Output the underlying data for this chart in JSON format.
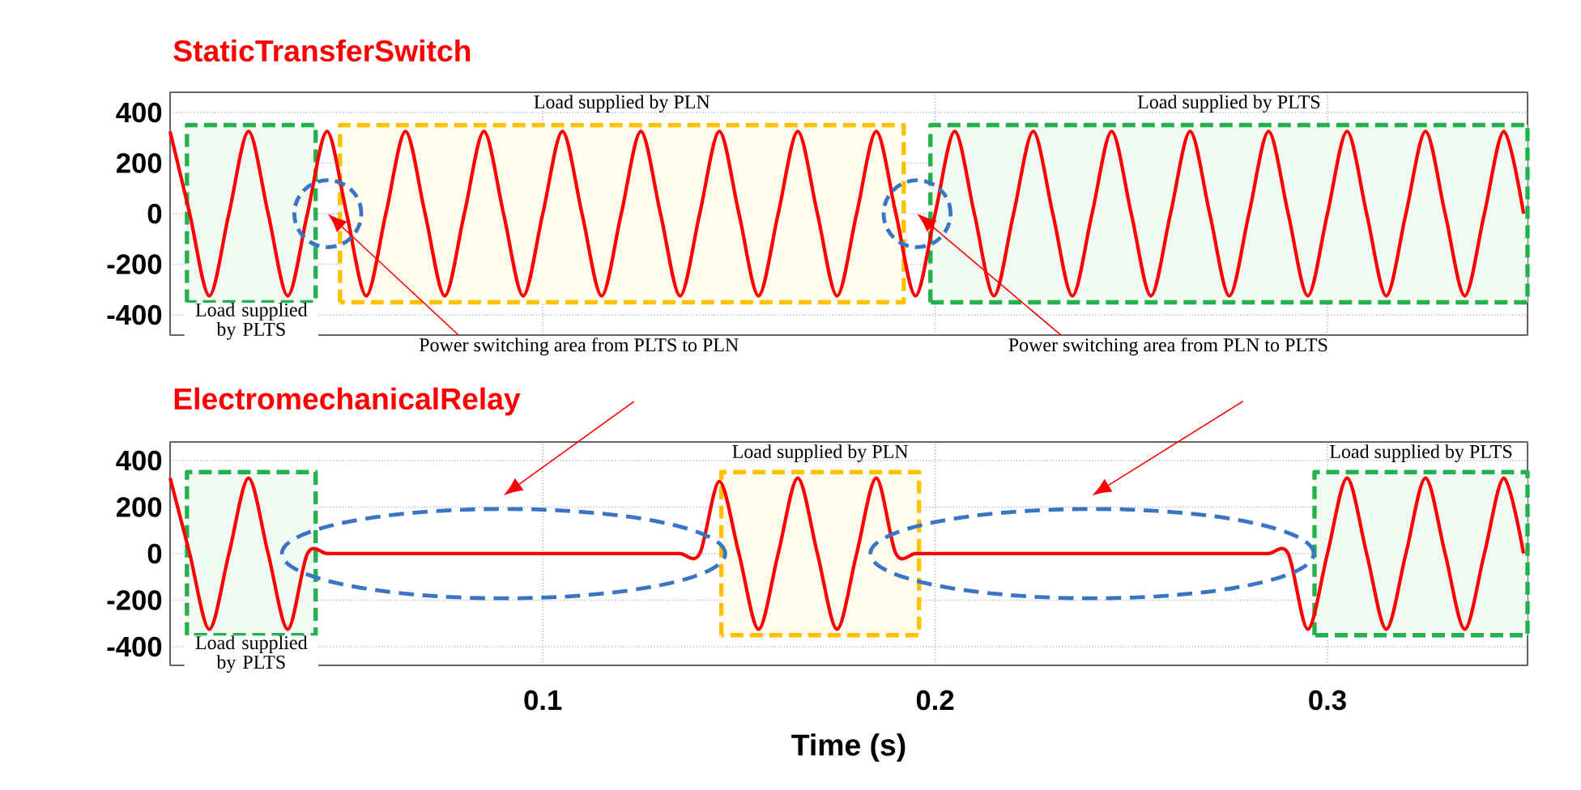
{
  "chart_data": [
    {
      "type": "line",
      "title": "StaticTransferSwitch",
      "x": [
        0.005,
        0.01,
        0.015,
        0.02,
        0.025,
        0.03,
        0.035,
        0.04,
        0.045,
        0.05,
        0.055,
        0.06,
        0.065,
        0.07,
        0.075,
        0.08,
        0.085,
        0.09,
        0.095,
        0.1,
        0.105,
        0.11,
        0.115,
        0.12,
        0.125,
        0.13,
        0.135,
        0.14,
        0.145,
        0.15,
        0.155,
        0.16,
        0.165,
        0.17,
        0.175,
        0.18,
        0.185,
        0.19,
        0.195,
        0.2,
        0.205,
        0.21,
        0.215,
        0.22,
        0.225,
        0.23,
        0.235,
        0.24,
        0.245,
        0.25,
        0.255,
        0.26,
        0.265,
        0.27,
        0.275,
        0.28,
        0.285,
        0.29,
        0.295,
        0.3,
        0.305,
        0.31,
        0.315,
        0.32,
        0.325,
        0.33,
        0.335,
        0.34,
        0.345,
        0.35
      ],
      "series": [
        {
          "color": "#ff0000",
          "values": [
            325,
            0,
            -325,
            0,
            325,
            0,
            -325,
            0,
            325,
            0,
            -325,
            0,
            325,
            0,
            -325,
            0,
            325,
            0,
            -325,
            0,
            325,
            0,
            -325,
            0,
            325,
            0,
            -325,
            0,
            325,
            0,
            -325,
            0,
            325,
            0,
            -325,
            0,
            325,
            0,
            -325,
            0,
            325,
            0,
            -325,
            0,
            325,
            0,
            -325,
            0,
            325,
            0,
            -325,
            0,
            325,
            0,
            -325,
            0,
            325,
            0,
            -325,
            0,
            325,
            0,
            -325,
            0,
            325,
            0,
            -325,
            0,
            325,
            0
          ]
        }
      ],
      "xlim": [
        0.005,
        0.351
      ],
      "ylim": [
        -480,
        480
      ],
      "xticks": [
        0.1,
        0.2,
        0.3
      ],
      "yticks": [
        -400,
        -200,
        0,
        200,
        400
      ],
      "grid": true,
      "tick_labels": "y",
      "bands": [
        {
          "axis": "x",
          "from": 0.0093,
          "to": 0.0421,
          "label": "Load supplied by PLTS",
          "color": "#22b14c"
        },
        {
          "axis": "x",
          "from": 0.0483,
          "to": 0.192,
          "label": "Load supplied by PLN",
          "color": "#ffc000"
        },
        {
          "axis": "x",
          "from": 0.1988,
          "to": 0.351,
          "label": "Load supplied by PLTS",
          "color": "#22b14c"
        }
      ],
      "annotations": [
        "Power switching area from PLTS to PLN",
        "Power switching area from PLN to PLTS"
      ]
    },
    {
      "type": "line",
      "title": "ElectromechanicalRelay",
      "xlabel": "Time (s)",
      "x": [
        0.005,
        0.01,
        0.015,
        0.02,
        0.025,
        0.03,
        0.035,
        0.04,
        0.045,
        0.05,
        0.055,
        0.06,
        0.065,
        0.07,
        0.075,
        0.08,
        0.085,
        0.09,
        0.095,
        0.1,
        0.105,
        0.11,
        0.115,
        0.12,
        0.125,
        0.13,
        0.135,
        0.14,
        0.145,
        0.15,
        0.155,
        0.16,
        0.165,
        0.17,
        0.175,
        0.18,
        0.185,
        0.19,
        0.195,
        0.2,
        0.205,
        0.21,
        0.215,
        0.22,
        0.225,
        0.23,
        0.235,
        0.24,
        0.245,
        0.25,
        0.255,
        0.26,
        0.265,
        0.27,
        0.275,
        0.28,
        0.285,
        0.29,
        0.295,
        0.3,
        0.305,
        0.31,
        0.315,
        0.32,
        0.325,
        0.33,
        0.335,
        0.34,
        0.345,
        0.35
      ],
      "series": [
        {
          "color": "#ff0000",
          "values": [
            325,
            0,
            -325,
            0,
            325,
            0,
            -325,
            0,
            0,
            0,
            0,
            0,
            0,
            0,
            0,
            0,
            0,
            0,
            0,
            0,
            0,
            0,
            0,
            0,
            0,
            0,
            0,
            0,
            310,
            0,
            -325,
            0,
            325,
            0,
            -325,
            0,
            325,
            0,
            0,
            0,
            0,
            0,
            0,
            0,
            0,
            0,
            0,
            0,
            0,
            0,
            0,
            0,
            0,
            0,
            0,
            0,
            0,
            0,
            -325,
            0,
            325,
            0,
            -325,
            0,
            325,
            0,
            -325,
            0,
            325,
            0
          ]
        }
      ],
      "xlim": [
        0.005,
        0.351
      ],
      "ylim": [
        -480,
        480
      ],
      "xticks": [
        0.1,
        0.2,
        0.3
      ],
      "yticks": [
        -400,
        -200,
        0,
        200,
        400
      ],
      "grid": true,
      "bands": [
        {
          "axis": "x",
          "from": 0.0093,
          "to": 0.0421,
          "label": "Load supplied by PLTS",
          "color": "#22b14c"
        },
        {
          "axis": "x",
          "from": 0.1455,
          "to": 0.1959,
          "label": "Load supplied by PLN",
          "color": "#ffc000"
        },
        {
          "axis": "x",
          "from": 0.2967,
          "to": 0.351,
          "label": "Load supplied by PLTS",
          "color": "#22b14c"
        }
      ]
    }
  ]
}
